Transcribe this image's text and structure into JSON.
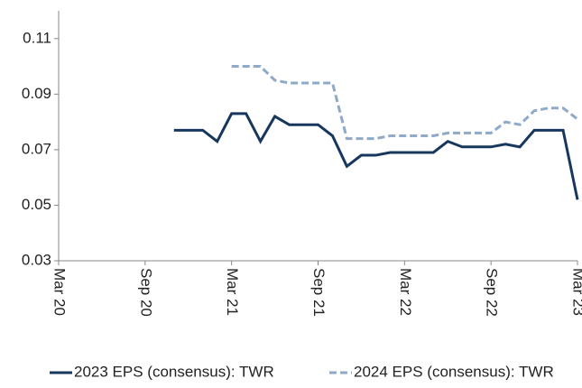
{
  "chart_data": {
    "type": "line",
    "ylim": [
      0.03,
      0.12
    ],
    "yticks": [
      0.03,
      0.05,
      0.07,
      0.09,
      0.11
    ],
    "xlim": [
      "2020-03",
      "2023-03"
    ],
    "xticks": [
      {
        "value": "2020-03",
        "label": "Mar 20"
      },
      {
        "value": "2020-09",
        "label": "Sep 20"
      },
      {
        "value": "2021-03",
        "label": "Mar 21"
      },
      {
        "value": "2021-09",
        "label": "Sep 21"
      },
      {
        "value": "2022-03",
        "label": "Mar 22"
      },
      {
        "value": "2022-09",
        "label": "Sep 22"
      },
      {
        "value": "2023-03",
        "label": "Mar 23"
      }
    ],
    "series": [
      {
        "name": "2023 EPS (consensus): TWR",
        "color": "#17375e",
        "dash": false,
        "x": [
          "2020-11",
          "2021-01",
          "2021-02",
          "2021-03",
          "2021-04",
          "2021-05",
          "2021-06",
          "2021-07",
          "2021-09",
          "2021-10",
          "2021-11",
          "2021-12",
          "2022-01",
          "2022-02",
          "2022-05",
          "2022-06",
          "2022-07",
          "2022-09",
          "2022-10",
          "2022-11",
          "2022-12",
          "2023-02",
          "2023-03"
        ],
        "values": [
          0.077,
          0.077,
          0.073,
          0.083,
          0.083,
          0.073,
          0.082,
          0.079,
          0.079,
          0.075,
          0.064,
          0.068,
          0.068,
          0.069,
          0.069,
          0.073,
          0.071,
          0.071,
          0.072,
          0.071,
          0.077,
          0.077,
          0.052
        ]
      },
      {
        "name": "2024 EPS (consensus): TWR",
        "color": "#8fa9c8",
        "dash": true,
        "x": [
          "2021-03",
          "2021-05",
          "2021-06",
          "2021-07",
          "2021-10",
          "2021-11",
          "2022-01",
          "2022-02",
          "2022-05",
          "2022-06",
          "2022-09",
          "2022-10",
          "2022-11",
          "2022-12",
          "2023-01",
          "2023-02",
          "2023-03"
        ],
        "values": [
          0.1,
          0.1,
          0.095,
          0.094,
          0.094,
          0.074,
          0.074,
          0.075,
          0.075,
          0.076,
          0.076,
          0.08,
          0.079,
          0.084,
          0.085,
          0.085,
          0.081
        ]
      }
    ]
  }
}
